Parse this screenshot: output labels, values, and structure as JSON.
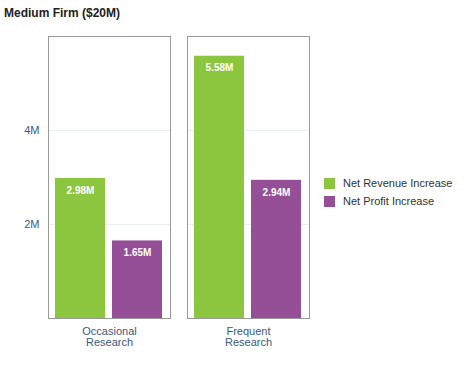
{
  "chart_data": {
    "type": "bar",
    "title": "Medium Firm ($20M)",
    "categories": [
      "Occasional Research",
      "Frequent Research"
    ],
    "series": [
      {
        "name": "Net Revenue Increase",
        "color": "#8cc63f",
        "values": [
          2.98,
          5.58
        ],
        "value_labels": [
          "2.98M",
          "5.58M"
        ]
      },
      {
        "name": "Net Profit Increase",
        "color": "#954f96",
        "values": [
          1.65,
          2.94
        ],
        "value_labels": [
          "1.65M",
          "2.94M"
        ]
      }
    ],
    "ylim": [
      0,
      6
    ],
    "yticks": [
      {
        "value": 2,
        "label": "2M"
      },
      {
        "value": 4,
        "label": "4M"
      }
    ],
    "grid": true,
    "legend": "right",
    "data_labels": true
  }
}
